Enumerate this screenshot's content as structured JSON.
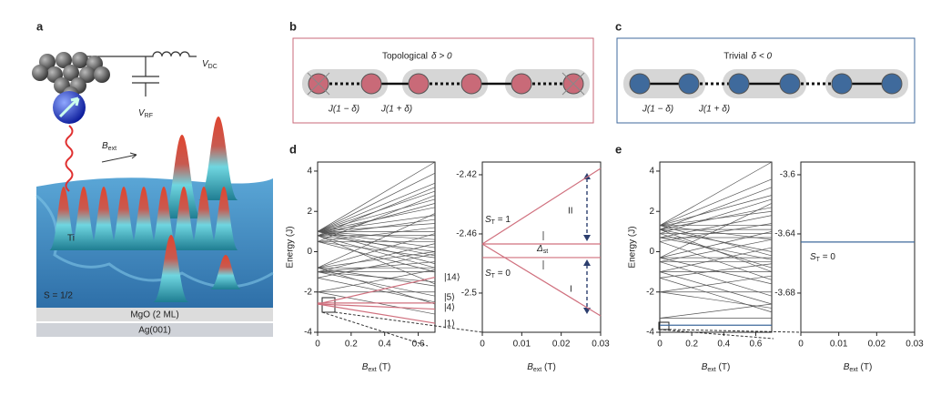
{
  "panel_a": {
    "label": "a",
    "v_dc": {
      "main": "V",
      "sub": "DC"
    },
    "v_rf": {
      "main": "V",
      "sub": "RF"
    },
    "b_ext": {
      "main": "B",
      "sub": "ext"
    },
    "atom": "Ti",
    "spin": "S = 1/2",
    "layer1": "MgO (2 ML)",
    "layer2": "Ag(001)"
  },
  "panel_b": {
    "label": "b",
    "title": "Topological",
    "condition": "δ > 0",
    "bond_weak": "J(1 − δ)",
    "bond_strong": "J(1 + δ)",
    "color": "#c96a78"
  },
  "panel_c": {
    "label": "c",
    "title": "Trivial",
    "condition": "δ < 0",
    "bond_weak": "J(1 − δ)",
    "bond_strong": "J(1 + δ)",
    "color": "#3f6a9c"
  },
  "panel_d": {
    "label": "d",
    "spectrum": {
      "ylabel": "Energy (J)",
      "xlabel": {
        "main": "B",
        "sub": "ext",
        "unit": " (T)"
      },
      "xlim": [
        0,
        0.7
      ],
      "ylim": [
        -4,
        4.45
      ],
      "xticks": [
        0,
        0.2,
        0.4,
        0.6
      ],
      "yticks": [
        -4,
        -2,
        0,
        2,
        4
      ],
      "lines": [
        [
          1,
          4.45
        ],
        [
          1,
          3.9
        ],
        [
          1,
          3.4
        ],
        [
          1,
          3.0
        ],
        [
          1,
          2.6
        ],
        [
          1,
          2.2
        ],
        [
          1,
          1.8
        ],
        [
          1,
          1.4
        ],
        [
          1,
          1.0
        ],
        [
          1,
          0.6
        ],
        [
          1,
          0.2
        ],
        [
          1,
          -0.2
        ],
        [
          1,
          -0.6
        ],
        [
          0.8,
          3.2
        ],
        [
          0.8,
          2.4
        ],
        [
          0.8,
          1.6
        ],
        [
          0.8,
          0.8
        ],
        [
          0.8,
          0
        ],
        [
          0.8,
          -0.8
        ],
        [
          0.8,
          -1.6
        ],
        [
          0.5,
          2.8
        ],
        [
          0.5,
          1.2
        ],
        [
          0.5,
          0.5
        ],
        [
          0.5,
          -0.3
        ],
        [
          0.5,
          -1.0
        ],
        [
          -0.8,
          1.9
        ],
        [
          -0.8,
          0.9
        ],
        [
          -0.8,
          0
        ],
        [
          -0.8,
          -0.8
        ],
        [
          -0.8,
          -1.7
        ],
        [
          -0.8,
          -2.6
        ],
        [
          -1,
          0.4
        ],
        [
          -1,
          -0.5
        ],
        [
          -1,
          -1.0
        ],
        [
          -1,
          -1.5
        ],
        [
          -1,
          -2.2
        ],
        [
          -1.3,
          -0.1
        ],
        [
          -1.3,
          -2.5
        ],
        [
          -2,
          -0.9
        ],
        [
          -2,
          -2
        ],
        [
          -2,
          -3.1
        ]
      ],
      "highlight": {
        "color": "#d0707e",
        "lines": [
          [
            -2.6,
            -1.27
          ],
          [
            -2.55,
            -2.55
          ],
          [
            -2.6,
            -2.85
          ],
          [
            -2.6,
            -3.55
          ]
        ]
      },
      "states": [
        "|14⟩",
        "|5⟩",
        "|4⟩",
        "|1⟩"
      ]
    },
    "zoom": {
      "xlabel": {
        "main": "B",
        "sub": "ext",
        "unit": " (T)"
      },
      "xlim": [
        0,
        0.03
      ],
      "ylim": [
        -2.5265,
        -2.4114
      ],
      "xticks": [
        0,
        0.01,
        0.02,
        0.03
      ],
      "yticks": [
        -2.5,
        -2.46,
        -2.42
      ],
      "lines": [],
      "highlight": {
        "color": "#d0707e",
        "lines": [
          [
            -2.4668,
            -2.4157
          ],
          [
            -2.4668,
            -2.4668
          ],
          [
            -2.4668,
            -2.5154
          ],
          [
            -2.476,
            -2.476
          ]
        ]
      },
      "triplet": {
        "main": "S",
        "sub": "T",
        "rest": " = 1"
      },
      "singlet": {
        "main": "S",
        "sub": "T",
        "rest": " = 0"
      },
      "gap": {
        "main": "Δ",
        "sub": "st"
      },
      "upper": "II",
      "lower": "I"
    }
  },
  "panel_e": {
    "label": "e",
    "spectrum": {
      "ylabel": "Energy (J)",
      "xlabel": {
        "main": "B",
        "sub": "ext",
        "unit": " (T)"
      },
      "xlim": [
        0,
        0.7
      ],
      "ylim": [
        -4,
        4.45
      ],
      "xticks": [
        0,
        0.2,
        0.4,
        0.6
      ],
      "yticks": [
        -4,
        -2,
        0,
        2,
        4
      ],
      "lines": [
        [
          1.3,
          4.45
        ],
        [
          1.3,
          3.6
        ],
        [
          1.3,
          2.8
        ],
        [
          1.3,
          2.0
        ],
        [
          1.3,
          1.3
        ],
        [
          1.3,
          0.6
        ],
        [
          1.3,
          -0.2
        ],
        [
          1.1,
          3.2
        ],
        [
          1.1,
          2.2
        ],
        [
          1.1,
          1.1
        ],
        [
          1.1,
          0
        ],
        [
          1.1,
          -1.0
        ],
        [
          0.9,
          2.6
        ],
        [
          0.9,
          0.9
        ],
        [
          0.9,
          -0.8
        ],
        [
          0.7,
          1.8
        ],
        [
          0.7,
          0.7
        ],
        [
          0.7,
          -0.4
        ],
        [
          0.5,
          1.4
        ],
        [
          0.5,
          -1.4
        ],
        [
          -0.3,
          2.4
        ],
        [
          -0.3,
          1.0
        ],
        [
          -0.3,
          -0.3
        ],
        [
          -0.3,
          -1.6
        ],
        [
          -0.5,
          0.6
        ],
        [
          -0.5,
          -0.5
        ],
        [
          -0.5,
          -2.2
        ],
        [
          -1,
          0.2
        ],
        [
          -1,
          -1
        ],
        [
          -1,
          -2.6
        ],
        [
          -1.3,
          -0.6
        ],
        [
          -1.3,
          -3.0
        ],
        [
          -2,
          -1.2
        ],
        [
          -2,
          -2
        ],
        [
          -2,
          -2.8
        ],
        [
          -3.3,
          -2.6
        ],
        [
          -3.3,
          -3.3
        ]
      ],
      "highlight": {
        "color": "#3f6a9c",
        "lines": [
          [
            -3.65,
            -3.65
          ]
        ]
      },
      "states": []
    },
    "zoom": {
      "xlabel": {
        "main": "B",
        "sub": "ext",
        "unit": " (T)"
      },
      "xlim": [
        0,
        0.03
      ],
      "ylim": [
        -3.7065,
        -3.5914
      ],
      "xticks": [
        0,
        0.01,
        0.02,
        0.03
      ],
      "yticks": [
        -3.68,
        -3.64,
        -3.6
      ],
      "lines": [],
      "highlight": {
        "color": "#3f6a9c",
        "lines": [
          [
            -3.6455,
            -3.6455
          ]
        ]
      },
      "singlet": {
        "main": "S",
        "sub": "T",
        "rest": " = 0"
      }
    }
  }
}
